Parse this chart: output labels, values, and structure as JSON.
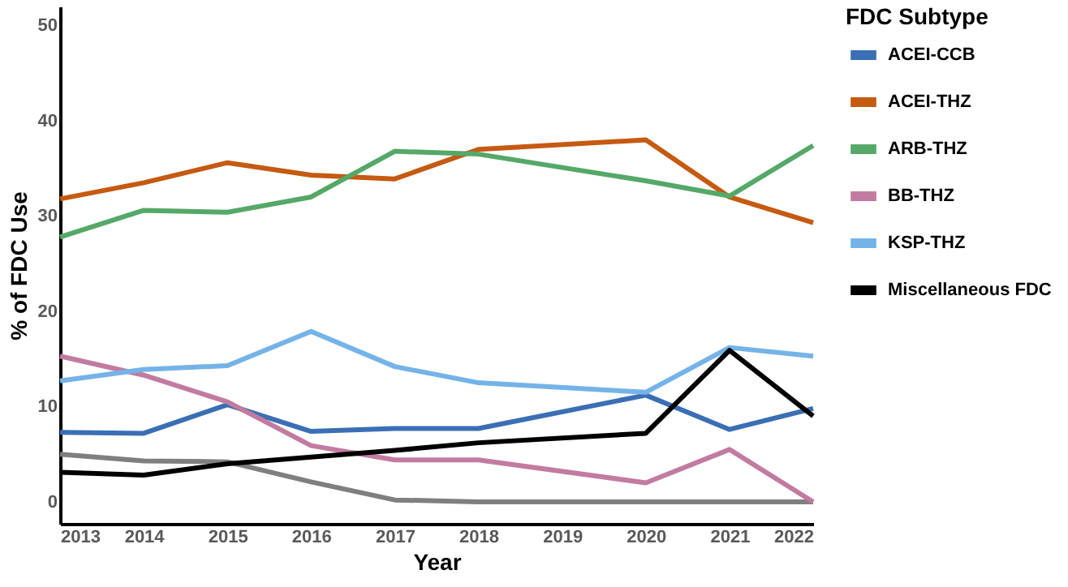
{
  "chart_data": {
    "type": "line",
    "xlabel": "Year",
    "ylabel": "% of FDC Use",
    "legend_title": "FDC Subtype",
    "legend": "right",
    "grid": false,
    "line_style": "solid",
    "xlim": [
      2013,
      2022
    ],
    "xticks": [
      2013,
      2014,
      2015,
      2016,
      2017,
      2018,
      2019,
      2020,
      2021,
      2022
    ],
    "ylim": [
      -2.3,
      52
    ],
    "yticks": [
      0,
      10,
      20,
      30,
      40,
      50
    ],
    "series": [
      {
        "name": "ACEI-CCB",
        "color": "#3a6fb5",
        "x": [
          2013,
          2014,
          2015,
          2016,
          2017,
          2018,
          2020,
          2021,
          2022
        ],
        "values": [
          7.3,
          7.2,
          10.2,
          7.4,
          7.7,
          7.7,
          11.2,
          7.6,
          9.8
        ]
      },
      {
        "name": "ACEI-THZ",
        "color": "#c55a11",
        "x": [
          2013,
          2014,
          2015,
          2016,
          2017,
          2018,
          2020,
          2021,
          2022
        ],
        "values": [
          31.8,
          33.5,
          35.6,
          34.3,
          33.9,
          37.0,
          38.0,
          32.0,
          29.3
        ]
      },
      {
        "name": "ARB-THZ",
        "color": "#55a868",
        "x": [
          2013,
          2014,
          2015,
          2016,
          2017,
          2018,
          2020,
          2021,
          2022
        ],
        "values": [
          27.8,
          30.6,
          30.4,
          32.0,
          36.8,
          36.5,
          33.7,
          32.1,
          37.4
        ]
      },
      {
        "name": "BB-THZ",
        "color": "#c27ba0",
        "x": [
          2013,
          2014,
          2015,
          2016,
          2017,
          2018,
          2020,
          2021,
          2022
        ],
        "values": [
          15.3,
          13.3,
          10.5,
          5.9,
          4.4,
          4.4,
          2.0,
          5.5,
          0
        ]
      },
      {
        "name": "KSP-THZ",
        "color": "#74b3e8",
        "x": [
          2013,
          2014,
          2015,
          2016,
          2017,
          2018,
          2020,
          2021,
          2022
        ],
        "values": [
          12.7,
          13.9,
          14.3,
          17.9,
          14.2,
          12.5,
          11.5,
          16.2,
          15.3
        ]
      },
      {
        "name": "Miscellaneous FDC",
        "color": "#000000",
        "x": [
          2013,
          2014,
          2015,
          2016,
          2017,
          2018,
          2020,
          2021,
          2022
        ],
        "values": [
          3.1,
          2.8,
          4.0,
          4.7,
          5.4,
          6.2,
          7.2,
          15.9,
          9.0
        ]
      },
      {
        "color": "#7f7f7f",
        "x": [
          2013,
          2014,
          2015,
          2016,
          2017,
          2018,
          2022
        ],
        "values": [
          5.0,
          4.3,
          4.2,
          2.1,
          0.2,
          0,
          0
        ]
      }
    ]
  }
}
